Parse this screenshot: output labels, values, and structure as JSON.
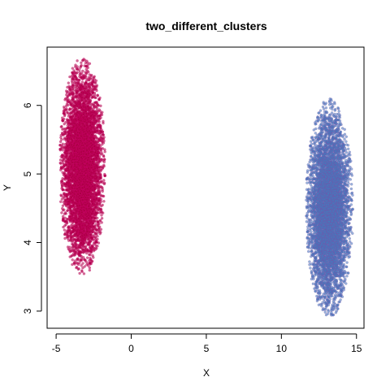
{
  "chart_data": {
    "type": "scatter",
    "title": "two_different_clusters",
    "xlabel": "X",
    "ylabel": "Y",
    "xlim": [
      -5.6,
      15.5
    ],
    "ylim": [
      2.75,
      6.85
    ],
    "xticks": [
      -5,
      0,
      5,
      10,
      15
    ],
    "yticks": [
      3,
      4,
      5,
      6
    ],
    "grid": false,
    "legend": "none",
    "clusters": [
      {
        "center": [
          -3.25,
          5.1
        ],
        "x_range": [
          -4.8,
          -1.75
        ],
        "y_range": [
          3.5,
          6.7
        ],
        "color": "#a8003f",
        "edge_color": "#d1006f",
        "approx_points": 6000
      },
      {
        "center": [
          13.2,
          4.5
        ],
        "x_range": [
          11.6,
          14.75
        ],
        "y_range": [
          2.92,
          6.12
        ],
        "color": "#3f7ec0",
        "edge_color": "#7b4fa8",
        "approx_points": 6000
      }
    ]
  }
}
